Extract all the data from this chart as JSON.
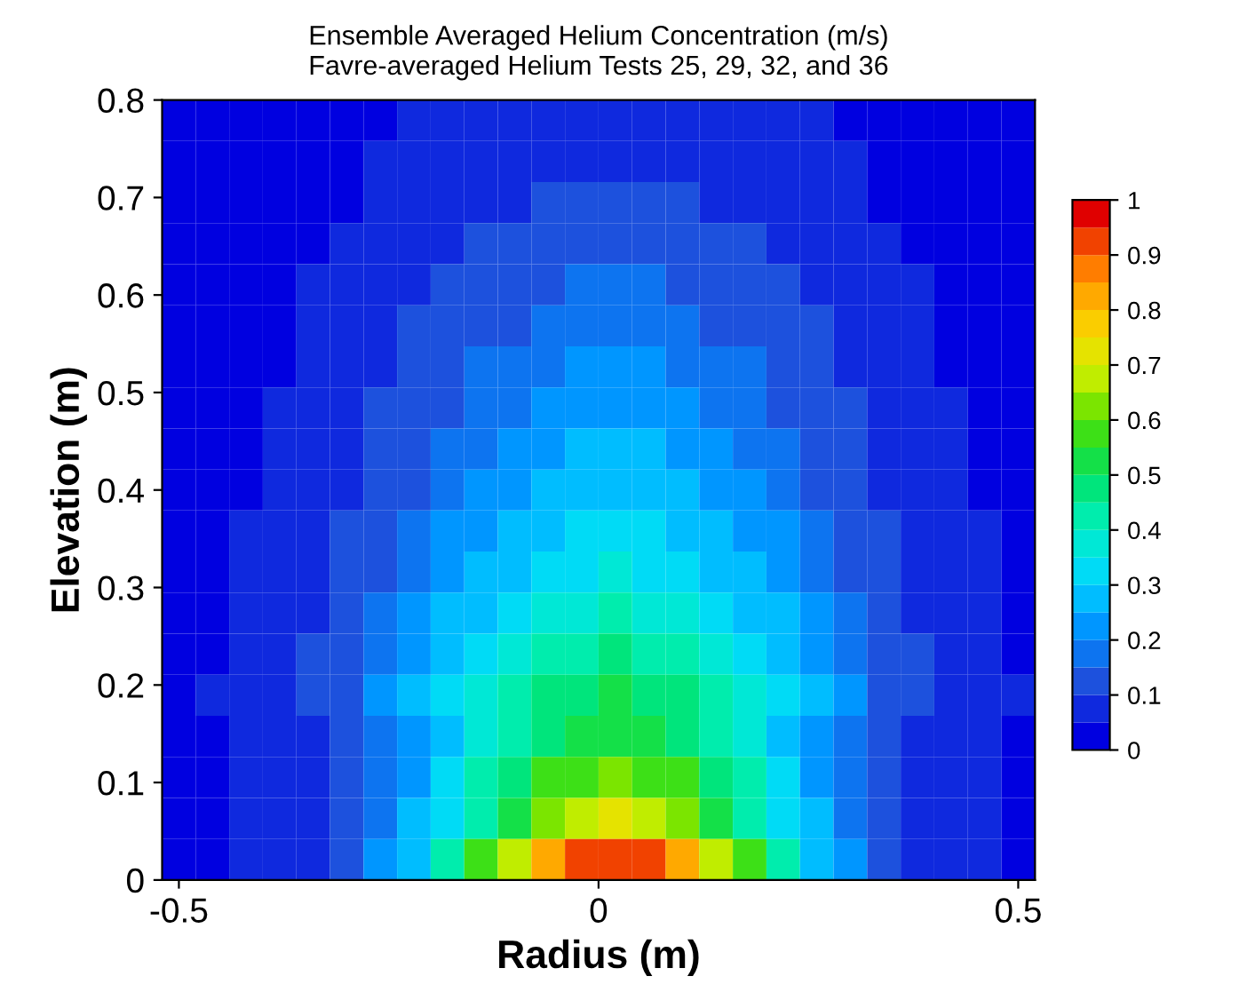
{
  "chart_data": {
    "type": "heatmap",
    "title": "Ensemble Averaged Helium Concentration (m/s)",
    "subtitle": "Favre-averaged Helium Tests 25, 29, 32, and 36",
    "xlabel": "Radius (m)",
    "ylabel": "Elevation (m)",
    "xlim": [
      -0.52,
      0.52
    ],
    "ylim": [
      0,
      0.8
    ],
    "xticks": [
      -0.5,
      0,
      0.5
    ],
    "yticks": [
      0,
      0.1,
      0.2,
      0.3,
      0.4,
      0.5,
      0.6,
      0.7,
      0.8
    ],
    "clim": [
      0,
      1
    ],
    "cticks": [
      0,
      0.1,
      0.2,
      0.3,
      0.4,
      0.5,
      0.6,
      0.7,
      0.8,
      0.9,
      1
    ],
    "grid": false,
    "cells": [
      [
        0.02,
        0.02,
        0.02,
        0.03,
        0.03,
        0.04,
        0.04,
        0.05,
        0.05,
        0.06,
        0.07,
        0.07,
        0.07,
        0.08,
        0.07,
        0.07,
        0.07,
        0.06,
        0.05,
        0.05,
        0.04,
        0.04,
        0.03,
        0.03,
        0.02,
        0.02
      ],
      [
        0.02,
        0.02,
        0.03,
        0.03,
        0.03,
        0.04,
        0.05,
        0.05,
        0.06,
        0.07,
        0.08,
        0.08,
        0.09,
        0.09,
        0.09,
        0.08,
        0.08,
        0.07,
        0.06,
        0.05,
        0.05,
        0.04,
        0.03,
        0.03,
        0.03,
        0.02
      ],
      [
        0.02,
        0.02,
        0.03,
        0.03,
        0.04,
        0.04,
        0.05,
        0.06,
        0.07,
        0.08,
        0.09,
        0.1,
        0.11,
        0.11,
        0.11,
        0.1,
        0.09,
        0.08,
        0.07,
        0.06,
        0.05,
        0.04,
        0.04,
        0.03,
        0.03,
        0.02
      ],
      [
        0.02,
        0.03,
        0.03,
        0.03,
        0.04,
        0.05,
        0.06,
        0.07,
        0.09,
        0.1,
        0.11,
        0.12,
        0.13,
        0.13,
        0.13,
        0.12,
        0.11,
        0.1,
        0.09,
        0.07,
        0.06,
        0.05,
        0.04,
        0.03,
        0.03,
        0.03
      ],
      [
        0.02,
        0.03,
        0.03,
        0.04,
        0.05,
        0.06,
        0.07,
        0.09,
        0.1,
        0.12,
        0.14,
        0.15,
        0.16,
        0.16,
        0.16,
        0.15,
        0.14,
        0.12,
        0.1,
        0.09,
        0.07,
        0.06,
        0.05,
        0.04,
        0.03,
        0.03
      ],
      [
        0.03,
        0.03,
        0.03,
        0.04,
        0.05,
        0.06,
        0.08,
        0.1,
        0.12,
        0.14,
        0.15,
        0.17,
        0.18,
        0.18,
        0.18,
        0.17,
        0.15,
        0.14,
        0.12,
        0.1,
        0.08,
        0.06,
        0.05,
        0.04,
        0.03,
        0.03
      ],
      [
        0.03,
        0.03,
        0.04,
        0.04,
        0.06,
        0.07,
        0.09,
        0.11,
        0.13,
        0.16,
        0.18,
        0.19,
        0.21,
        0.21,
        0.21,
        0.19,
        0.18,
        0.16,
        0.13,
        0.11,
        0.09,
        0.07,
        0.06,
        0.04,
        0.04,
        0.03
      ],
      [
        0.03,
        0.03,
        0.04,
        0.05,
        0.06,
        0.08,
        0.1,
        0.12,
        0.15,
        0.17,
        0.19,
        0.21,
        0.23,
        0.23,
        0.23,
        0.21,
        0.19,
        0.17,
        0.15,
        0.12,
        0.1,
        0.08,
        0.06,
        0.05,
        0.04,
        0.03
      ],
      [
        0.03,
        0.03,
        0.04,
        0.05,
        0.06,
        0.08,
        0.11,
        0.13,
        0.16,
        0.19,
        0.21,
        0.23,
        0.25,
        0.25,
        0.25,
        0.23,
        0.21,
        0.19,
        0.16,
        0.13,
        0.11,
        0.08,
        0.06,
        0.05,
        0.04,
        0.03
      ],
      [
        0.03,
        0.03,
        0.04,
        0.06,
        0.07,
        0.09,
        0.12,
        0.15,
        0.18,
        0.21,
        0.24,
        0.27,
        0.28,
        0.29,
        0.28,
        0.27,
        0.24,
        0.21,
        0.18,
        0.15,
        0.12,
        0.09,
        0.07,
        0.06,
        0.04,
        0.03
      ],
      [
        0.03,
        0.04,
        0.05,
        0.06,
        0.08,
        0.1,
        0.13,
        0.16,
        0.2,
        0.24,
        0.27,
        0.3,
        0.31,
        0.32,
        0.31,
        0.3,
        0.27,
        0.24,
        0.2,
        0.16,
        0.13,
        0.1,
        0.08,
        0.06,
        0.05,
        0.04
      ],
      [
        0.03,
        0.04,
        0.05,
        0.06,
        0.08,
        0.11,
        0.15,
        0.18,
        0.22,
        0.26,
        0.3,
        0.33,
        0.35,
        0.36,
        0.35,
        0.33,
        0.3,
        0.26,
        0.22,
        0.18,
        0.15,
        0.11,
        0.08,
        0.06,
        0.05,
        0.04
      ],
      [
        0.03,
        0.04,
        0.05,
        0.07,
        0.09,
        0.12,
        0.16,
        0.2,
        0.25,
        0.29,
        0.34,
        0.37,
        0.39,
        0.4,
        0.39,
        0.37,
        0.34,
        0.29,
        0.25,
        0.2,
        0.16,
        0.12,
        0.09,
        0.07,
        0.05,
        0.04
      ],
      [
        0.03,
        0.04,
        0.06,
        0.08,
        0.1,
        0.14,
        0.18,
        0.23,
        0.28,
        0.33,
        0.38,
        0.42,
        0.44,
        0.45,
        0.44,
        0.42,
        0.38,
        0.33,
        0.28,
        0.23,
        0.18,
        0.14,
        0.1,
        0.08,
        0.06,
        0.04
      ],
      [
        0.04,
        0.05,
        0.06,
        0.08,
        0.11,
        0.15,
        0.2,
        0.25,
        0.31,
        0.37,
        0.42,
        0.46,
        0.49,
        0.5,
        0.49,
        0.46,
        0.42,
        0.37,
        0.31,
        0.25,
        0.2,
        0.15,
        0.11,
        0.08,
        0.06,
        0.05
      ],
      [
        0.03,
        0.04,
        0.05,
        0.07,
        0.09,
        0.13,
        0.17,
        0.23,
        0.29,
        0.36,
        0.43,
        0.49,
        0.53,
        0.54,
        0.53,
        0.49,
        0.43,
        0.36,
        0.29,
        0.23,
        0.17,
        0.13,
        0.09,
        0.07,
        0.05,
        0.04
      ],
      [
        0.03,
        0.04,
        0.05,
        0.06,
        0.09,
        0.12,
        0.17,
        0.24,
        0.31,
        0.4,
        0.48,
        0.55,
        0.6,
        0.62,
        0.6,
        0.55,
        0.48,
        0.4,
        0.31,
        0.24,
        0.17,
        0.12,
        0.09,
        0.06,
        0.05,
        0.04
      ],
      [
        0.03,
        0.03,
        0.05,
        0.06,
        0.09,
        0.12,
        0.18,
        0.25,
        0.34,
        0.44,
        0.54,
        0.63,
        0.7,
        0.72,
        0.7,
        0.63,
        0.54,
        0.44,
        0.34,
        0.25,
        0.18,
        0.12,
        0.09,
        0.06,
        0.05,
        0.03
      ],
      [
        0.03,
        0.04,
        0.05,
        0.06,
        0.09,
        0.14,
        0.2,
        0.3,
        0.41,
        0.55,
        0.69,
        0.81,
        0.9,
        0.93,
        0.9,
        0.81,
        0.69,
        0.55,
        0.41,
        0.3,
        0.2,
        0.14,
        0.09,
        0.06,
        0.05,
        0.04
      ]
    ]
  }
}
